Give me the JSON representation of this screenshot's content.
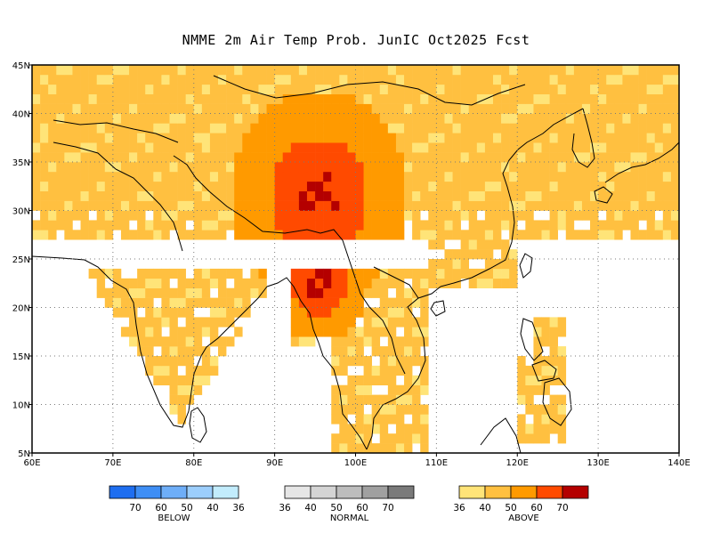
{
  "title": "NMME 2m Air Temp Prob. JunIC  Oct2025 Fcst",
  "map": {
    "lon_range": [
      60,
      140
    ],
    "lat_range": [
      5,
      45
    ],
    "lon_labels": [
      "60E",
      "70E",
      "80E",
      "90E",
      "100E",
      "110E",
      "120E",
      "130E",
      "140E"
    ],
    "lat_labels": [
      "5N",
      "10N",
      "15N",
      "20N",
      "25N",
      "30N",
      "35N",
      "40N",
      "45N"
    ],
    "grid": "dotted"
  },
  "legends": {
    "below": {
      "label": "BELOW",
      "colors": [
        "#1e6ef0",
        "#3e8ef5",
        "#6eaef8",
        "#9ccefc",
        "#c2ecfc"
      ],
      "ticks": [
        "70",
        "60",
        "50",
        "40",
        "36"
      ]
    },
    "normal": {
      "label": "NORMAL",
      "colors": [
        "#e6e6e6",
        "#d4d4d4",
        "#bdbdbd",
        "#a0a0a0",
        "#7a7a7a"
      ],
      "ticks": [
        "36",
        "40",
        "50",
        "60",
        "70"
      ]
    },
    "above": {
      "label": "ABOVE",
      "colors": [
        "#ffe478",
        "#ffc040",
        "#ff9a00",
        "#ff4a00",
        "#b40000"
      ],
      "ticks": [
        "36",
        "40",
        "50",
        "60",
        "70"
      ]
    }
  }
}
